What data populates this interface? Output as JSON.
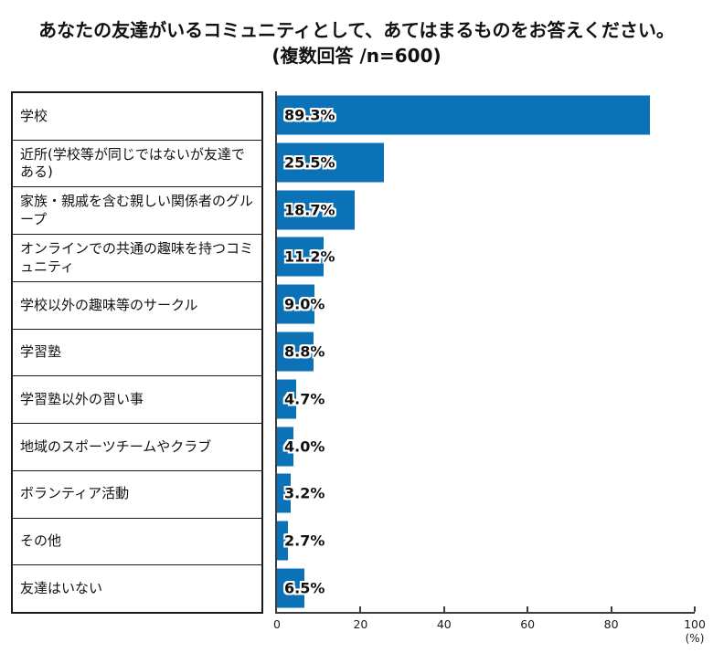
{
  "title": {
    "line1": "あなたの友達がいるコミュニティとして、あてはまるものをお答えください。",
    "line2": "(複数回答 /n=600)"
  },
  "chart_data": {
    "type": "bar",
    "orientation": "horizontal",
    "title": "あなたの友達がいるコミュニティとして、あてはまるものをお答えください。(複数回答 /n=600)",
    "categories": [
      "学校",
      "近所(学校等が同じではないが友達である)",
      "家族・親戚を含む親しい関係者のグループ",
      "オンラインでの共通の趣味を持つコミュニティ",
      "学校以外の趣味等のサークル",
      "学習塾",
      "学習塾以外の習い事",
      "地域のスポーツチームやクラブ",
      "ボランティア活動",
      "その他",
      "友達はいない"
    ],
    "values": [
      89.3,
      25.5,
      18.7,
      11.2,
      9.0,
      8.8,
      4.7,
      4.0,
      3.2,
      2.7,
      6.5
    ],
    "value_suffix": "%",
    "xlabel": "(%)",
    "xlim": [
      0,
      100
    ],
    "x_ticks": [
      0,
      20,
      40,
      60,
      80,
      100
    ],
    "bar_color": "#0b72b8",
    "grid": false,
    "legend": false
  }
}
